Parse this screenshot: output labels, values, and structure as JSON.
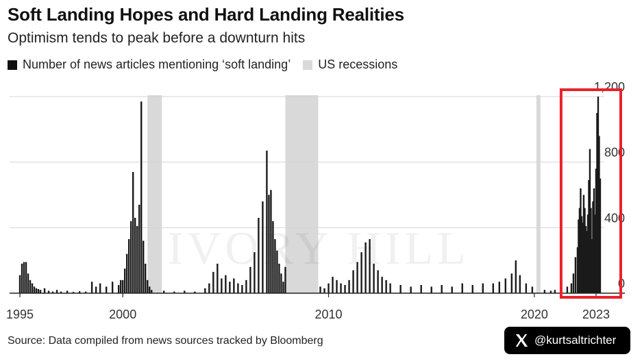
{
  "header": {
    "title": "Soft Landing Hopes and Hard Landing Realities",
    "subtitle": "Optimism tends to peak before a downturn hits"
  },
  "legend": {
    "items": [
      {
        "label": "Number of news articles mentioning ‘soft landing’",
        "color": "#111111"
      },
      {
        "label": "US recessions",
        "color": "#d9d9d9"
      }
    ]
  },
  "footer": {
    "source": "Source: Data compiled from news sources tracked by Bloomberg"
  },
  "badge": {
    "handle": "@kurtsaltrichter",
    "icon": "x-logo-icon"
  },
  "colors": {
    "bars": "#1a1a1a",
    "recession": "#d9d9d9",
    "grid": "#d4d4d4",
    "highlight": "#e8222a"
  },
  "chart_data": {
    "type": "bar",
    "x_ticks": [
      "1995",
      "2000",
      "2010",
      "2020",
      "2023"
    ],
    "y_ticks": [
      "0",
      "400",
      "800",
      "1,200"
    ],
    "ylim": [
      0,
      1200
    ],
    "xlim": [
      1994.5,
      2024.4
    ],
    "y_axis_position": "right",
    "grid": true,
    "recessions": [
      [
        2001.2,
        2001.9
      ],
      [
        2007.9,
        2009.5
      ],
      [
        2020.1,
        2020.3
      ]
    ],
    "highlight_period": [
      2021.3,
      2024.2
    ],
    "series": [
      {
        "name": "Number of news articles mentioning ‘soft landing’",
        "points": [
          [
            1995.0,
            110
          ],
          [
            1995.1,
            180
          ],
          [
            1995.2,
            190
          ],
          [
            1995.3,
            190
          ],
          [
            1995.4,
            120
          ],
          [
            1995.5,
            80
          ],
          [
            1995.6,
            60
          ],
          [
            1995.7,
            40
          ],
          [
            1995.8,
            30
          ],
          [
            1995.9,
            25
          ],
          [
            1996.0,
            20
          ],
          [
            1996.2,
            30
          ],
          [
            1996.4,
            15
          ],
          [
            1996.6,
            10
          ],
          [
            1996.8,
            20
          ],
          [
            1997.0,
            10
          ],
          [
            1997.3,
            15
          ],
          [
            1997.6,
            8
          ],
          [
            1997.9,
            12
          ],
          [
            1998.2,
            10
          ],
          [
            1998.5,
            70
          ],
          [
            1998.7,
            40
          ],
          [
            1998.9,
            60
          ],
          [
            1999.2,
            40
          ],
          [
            1999.5,
            70
          ],
          [
            1999.8,
            50
          ],
          [
            1999.9,
            80
          ],
          [
            2000.0,
            80
          ],
          [
            2000.1,
            150
          ],
          [
            2000.2,
            240
          ],
          [
            2000.3,
            330
          ],
          [
            2000.4,
            440
          ],
          [
            2000.5,
            740
          ],
          [
            2000.6,
            460
          ],
          [
            2000.7,
            410
          ],
          [
            2000.8,
            540
          ],
          [
            2000.9,
            1170
          ],
          [
            2001.0,
            320
          ],
          [
            2001.1,
            180
          ],
          [
            2001.2,
            80
          ],
          [
            2001.3,
            40
          ],
          [
            2001.4,
            20
          ],
          [
            2002.0,
            15
          ],
          [
            2002.5,
            10
          ],
          [
            2003.0,
            15
          ],
          [
            2003.5,
            10
          ],
          [
            2004.0,
            30
          ],
          [
            2004.2,
            60
          ],
          [
            2004.4,
            130
          ],
          [
            2004.6,
            180
          ],
          [
            2004.8,
            90
          ],
          [
            2005.0,
            110
          ],
          [
            2005.2,
            70
          ],
          [
            2005.4,
            90
          ],
          [
            2005.6,
            60
          ],
          [
            2005.8,
            50
          ],
          [
            2006.0,
            80
          ],
          [
            2006.2,
            160
          ],
          [
            2006.4,
            250
          ],
          [
            2006.6,
            460
          ],
          [
            2006.8,
            560
          ],
          [
            2007.0,
            870
          ],
          [
            2007.1,
            600
          ],
          [
            2007.2,
            630
          ],
          [
            2007.3,
            440
          ],
          [
            2007.4,
            330
          ],
          [
            2007.5,
            260
          ],
          [
            2007.6,
            180
          ],
          [
            2007.7,
            120
          ],
          [
            2007.8,
            70
          ],
          [
            2007.9,
            160
          ],
          [
            2009.6,
            40
          ],
          [
            2009.8,
            30
          ],
          [
            2010.0,
            60
          ],
          [
            2010.2,
            100
          ],
          [
            2010.4,
            80
          ],
          [
            2010.6,
            60
          ],
          [
            2010.8,
            50
          ],
          [
            2011.0,
            80
          ],
          [
            2011.2,
            140
          ],
          [
            2011.4,
            190
          ],
          [
            2011.6,
            250
          ],
          [
            2011.8,
            310
          ],
          [
            2012.0,
            330
          ],
          [
            2012.2,
            180
          ],
          [
            2012.4,
            140
          ],
          [
            2012.6,
            100
          ],
          [
            2012.8,
            80
          ],
          [
            2013.0,
            60
          ],
          [
            2013.5,
            50
          ],
          [
            2014.0,
            40
          ],
          [
            2014.5,
            50
          ],
          [
            2015.0,
            40
          ],
          [
            2015.5,
            50
          ],
          [
            2016.0,
            40
          ],
          [
            2016.5,
            60
          ],
          [
            2017.0,
            50
          ],
          [
            2017.5,
            60
          ],
          [
            2018.0,
            60
          ],
          [
            2018.3,
            70
          ],
          [
            2018.6,
            90
          ],
          [
            2018.9,
            120
          ],
          [
            2019.1,
            200
          ],
          [
            2019.3,
            110
          ],
          [
            2019.6,
            60
          ],
          [
            2019.9,
            40
          ],
          [
            2020.5,
            20
          ],
          [
            2020.8,
            15
          ],
          [
            2021.0,
            20
          ],
          [
            2021.3,
            30
          ],
          [
            2021.6,
            40
          ],
          [
            2021.8,
            60
          ],
          [
            2021.9,
            120
          ],
          [
            2022.0,
            220
          ],
          [
            2022.1,
            280
          ],
          [
            2022.15,
            450
          ],
          [
            2022.2,
            520
          ],
          [
            2022.25,
            640
          ],
          [
            2022.3,
            470
          ],
          [
            2022.35,
            430
          ],
          [
            2022.4,
            600
          ],
          [
            2022.45,
            520
          ],
          [
            2022.5,
            410
          ],
          [
            2022.55,
            380
          ],
          [
            2022.6,
            480
          ],
          [
            2022.65,
            690
          ],
          [
            2022.7,
            880
          ],
          [
            2022.75,
            520
          ],
          [
            2022.8,
            330
          ],
          [
            2022.85,
            560
          ],
          [
            2022.9,
            640
          ],
          [
            2022.95,
            480
          ],
          [
            2023.0,
            760
          ],
          [
            2023.05,
            1100
          ],
          [
            2023.1,
            1200
          ],
          [
            2023.15,
            960
          ],
          [
            2023.2,
            700
          ]
        ]
      }
    ],
    "watermark_text": "IVORY HILL"
  }
}
